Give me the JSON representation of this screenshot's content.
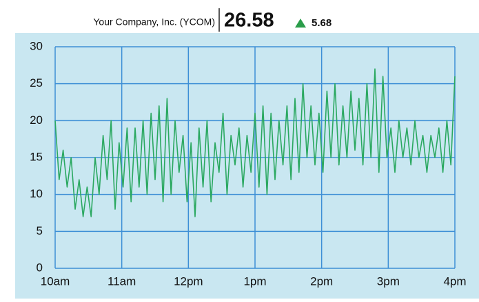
{
  "chart_data": {
    "type": "line",
    "title": "Your Company, Inc. (YCOM)",
    "price": "26.58",
    "change": "5.68",
    "x": [
      10.0,
      10.06,
      10.12,
      10.18,
      10.24,
      10.3,
      10.36,
      10.42,
      10.48,
      10.54,
      10.6,
      10.66,
      10.72,
      10.78,
      10.84,
      10.9,
      10.96,
      11.02,
      11.08,
      11.14,
      11.2,
      11.26,
      11.32,
      11.38,
      11.44,
      11.5,
      11.56,
      11.62,
      11.68,
      11.74,
      11.8,
      11.86,
      11.92,
      11.98,
      12.04,
      12.1,
      12.16,
      12.22,
      12.28,
      12.34,
      12.4,
      12.46,
      12.52,
      12.58,
      12.64,
      12.7,
      12.76,
      12.82,
      12.88,
      12.94,
      13.0,
      13.06,
      13.12,
      13.18,
      13.24,
      13.3,
      13.36,
      13.42,
      13.48,
      13.54,
      13.6,
      13.66,
      13.72,
      13.78,
      13.84,
      13.9,
      13.96,
      14.02,
      14.08,
      14.14,
      14.2,
      14.26,
      14.32,
      14.38,
      14.44,
      14.5,
      14.56,
      14.62,
      14.68,
      14.74,
      14.8,
      14.86,
      14.92,
      14.98,
      15.04,
      15.1,
      15.16,
      15.22,
      15.28,
      15.34,
      15.4,
      15.46,
      15.52,
      15.58,
      15.64,
      15.7,
      15.76,
      15.82,
      15.88,
      15.94,
      16.0
    ],
    "series": [
      {
        "name": "YCOM",
        "color": "#2aa860",
        "values": [
          20,
          12,
          16,
          11,
          15,
          8,
          12,
          7,
          11,
          7,
          15,
          10,
          18,
          12,
          20,
          8,
          17,
          11,
          19,
          9,
          19,
          11,
          20,
          10,
          21,
          12,
          22,
          9,
          23,
          10,
          20,
          13,
          18,
          9,
          17,
          7,
          19,
          11,
          20,
          9,
          17,
          13,
          21,
          10,
          18,
          14,
          19,
          11,
          18,
          13,
          21,
          11,
          22,
          10,
          21,
          12,
          20,
          14,
          22,
          12,
          23,
          13,
          25,
          15,
          22,
          14,
          21,
          13,
          24,
          15,
          25,
          14,
          22,
          15,
          24,
          16,
          23,
          14,
          25,
          15,
          27,
          13,
          26,
          15,
          19,
          13,
          20,
          15,
          19,
          14,
          20,
          15,
          18,
          13,
          18,
          15,
          19,
          13,
          20,
          14,
          26
        ]
      }
    ],
    "xlim": [
      10,
      16
    ],
    "xticks": [
      {
        "value": 10,
        "label": "10am"
      },
      {
        "value": 11,
        "label": "11am"
      },
      {
        "value": 12,
        "label": "12pm"
      },
      {
        "value": 13,
        "label": "1pm"
      },
      {
        "value": 14,
        "label": "2pm"
      },
      {
        "value": 15,
        "label": "3pm"
      },
      {
        "value": 16,
        "label": "4pm"
      }
    ],
    "ylim": [
      0,
      30
    ],
    "yticks": [
      0,
      5,
      10,
      15,
      20,
      25,
      30
    ],
    "grid": true,
    "grid_color": "#3d8fd6",
    "background": "#c9e7f1"
  }
}
